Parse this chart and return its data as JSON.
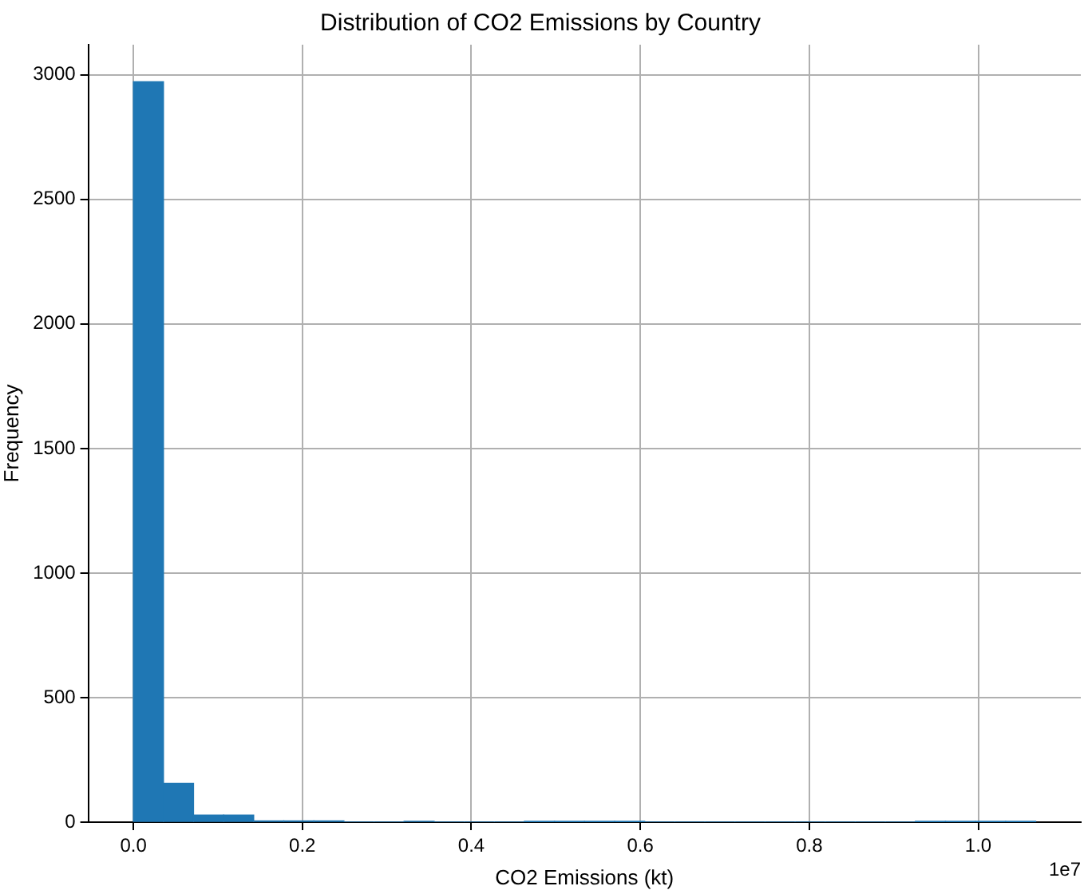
{
  "chart_data": {
    "type": "histogram",
    "title": "Distribution of CO2 Emissions by Country",
    "xlabel": "CO2 Emissions (kt)",
    "ylabel": "Frequency",
    "bins": [
      0,
      0.0356,
      0.0712,
      0.1068,
      0.1424,
      0.178,
      0.2136,
      0.2492,
      0.2848,
      0.3204,
      0.356,
      0.3916,
      0.4272,
      0.4628,
      0.4984,
      0.534,
      0.5696,
      0.6052,
      0.6408,
      0.6764,
      0.712,
      0.7476,
      0.7832,
      0.8188,
      0.8544,
      0.89,
      0.9256,
      0.9612,
      0.9968,
      1.0324,
      1.068
    ],
    "values": [
      2972,
      156,
      28,
      28,
      5,
      5,
      5,
      0,
      0,
      3,
      0,
      0,
      0,
      2,
      2,
      2,
      2,
      0,
      0,
      0,
      0,
      0,
      0,
      0,
      0,
      0,
      2,
      2,
      2,
      2
    ],
    "color": "#1f77b4",
    "xlim": [
      -0.0534,
      1.1214
    ],
    "xticks": [
      {
        "value": 0,
        "label": "0.0"
      },
      0.2,
      0.4,
      0.6,
      0.8,
      {
        "value": 1,
        "label": "1.0"
      }
    ],
    "ylim": [
      0,
      3121
    ],
    "yticks": [
      0,
      500,
      1000,
      1500,
      2000,
      2500,
      3000
    ],
    "annotations": [
      "1e7"
    ],
    "grid": true
  }
}
